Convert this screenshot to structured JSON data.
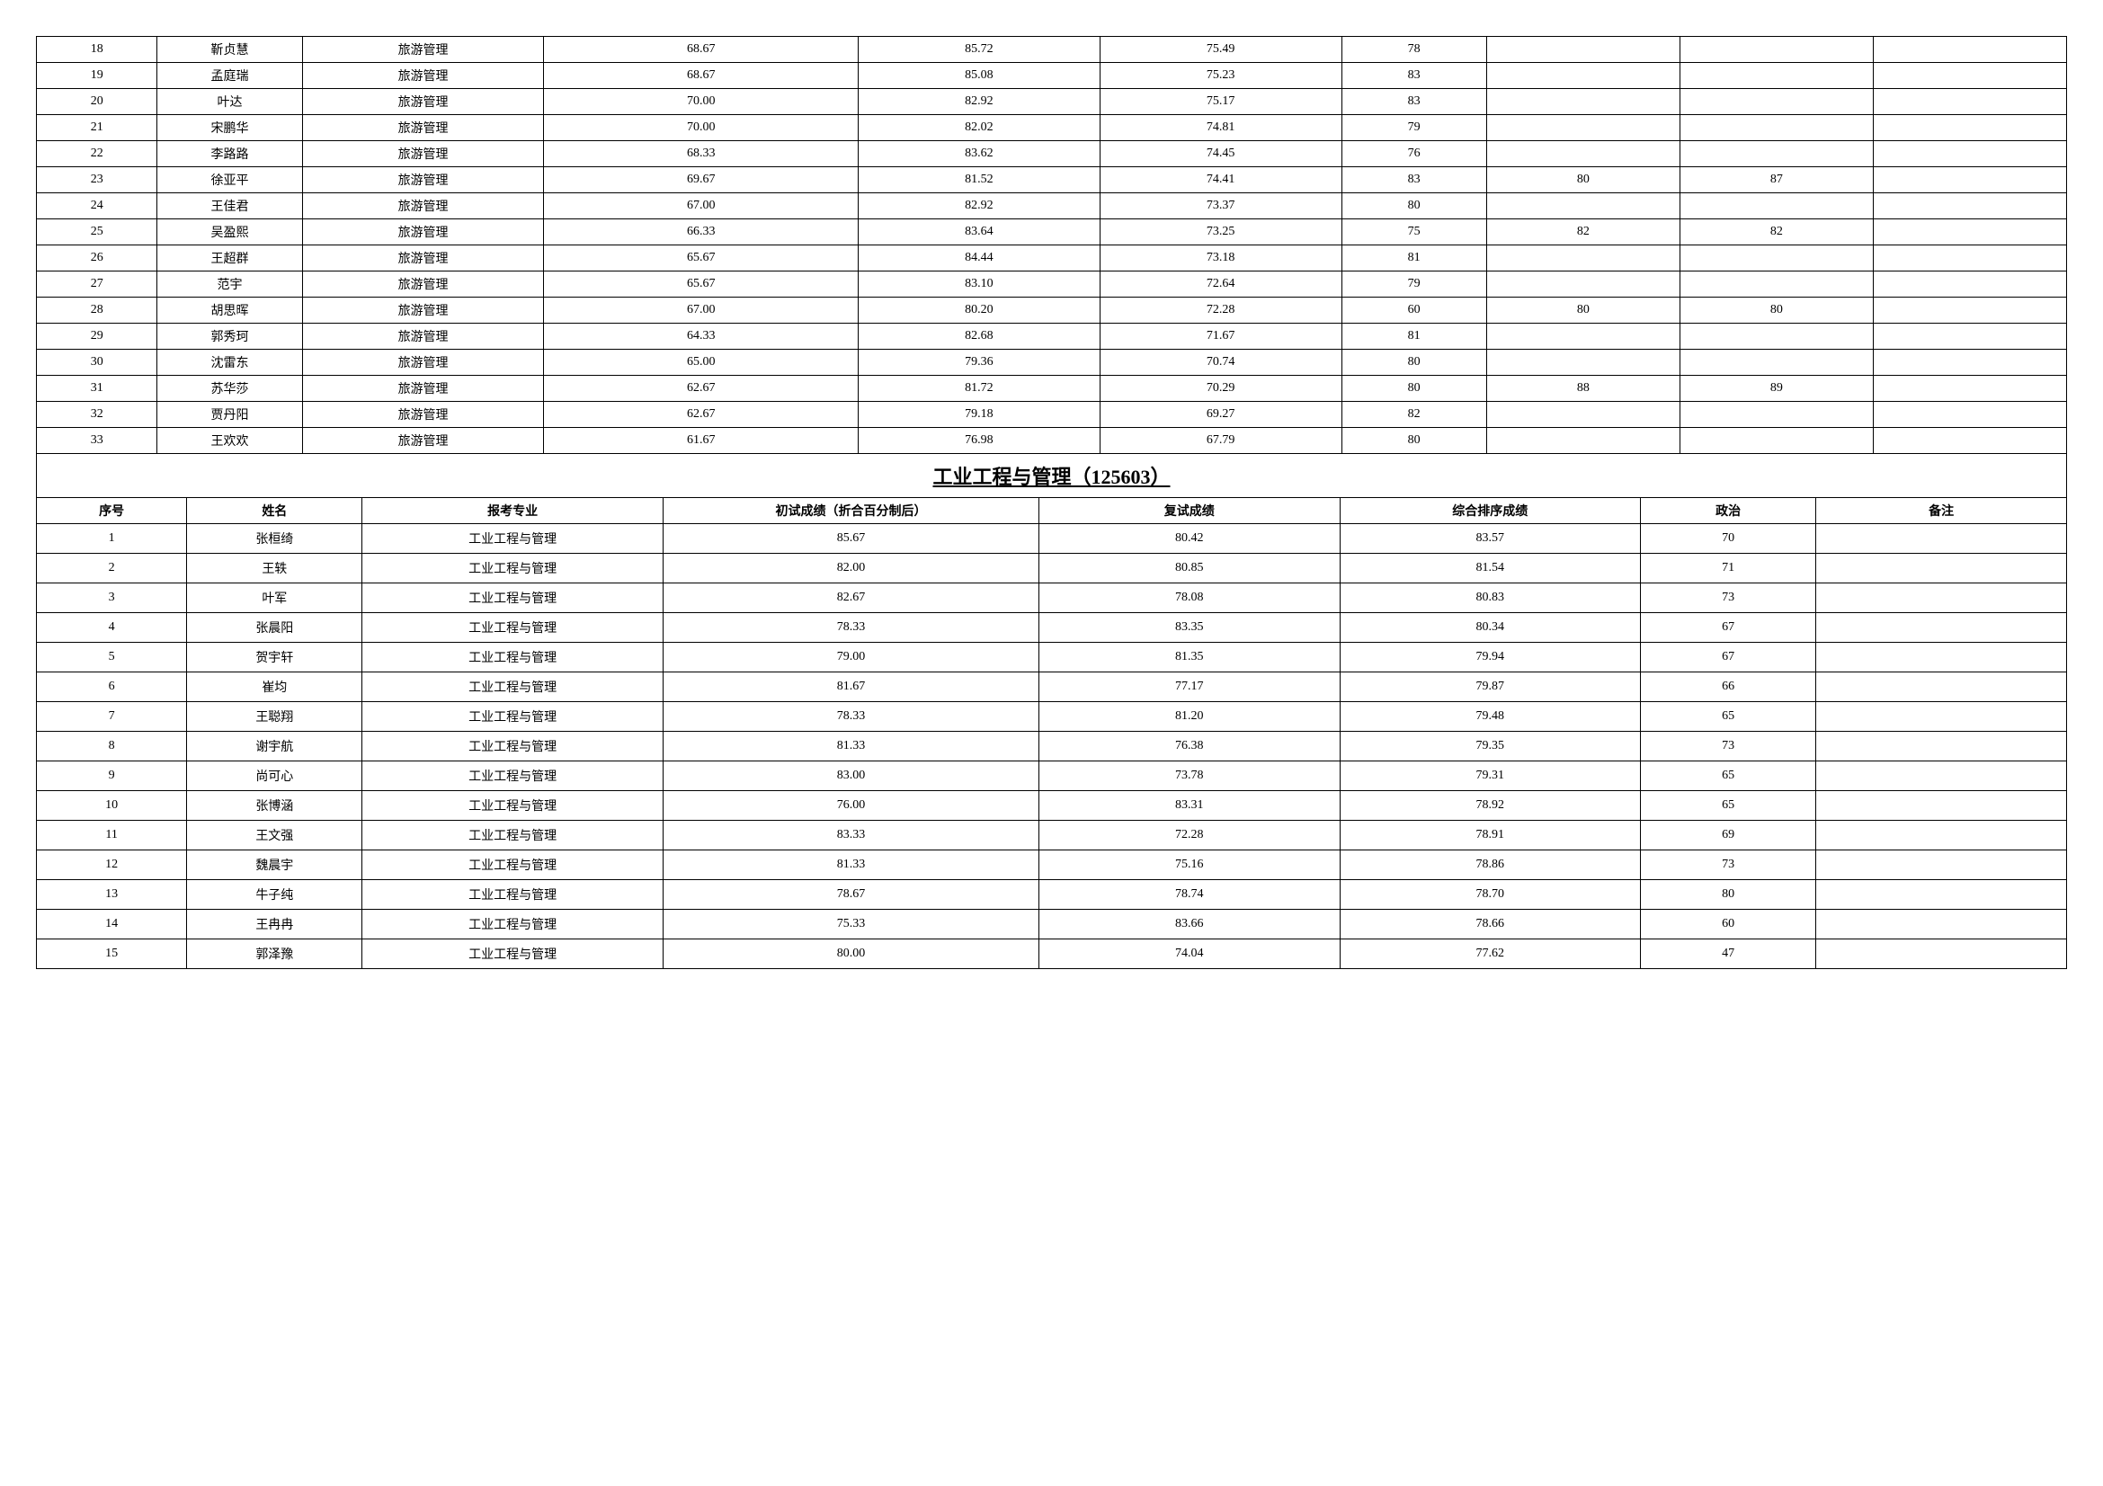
{
  "table1": {
    "rows": [
      {
        "seq": "18",
        "name": "靳贞慧",
        "major": "旅游管理",
        "c1": "68.67",
        "c2": "85.72",
        "c3": "75.49",
        "c4": "78",
        "c5": "",
        "c6": "",
        "note": ""
      },
      {
        "seq": "19",
        "name": "孟庭瑞",
        "major": "旅游管理",
        "c1": "68.67",
        "c2": "85.08",
        "c3": "75.23",
        "c4": "83",
        "c5": "",
        "c6": "",
        "note": ""
      },
      {
        "seq": "20",
        "name": "叶达",
        "major": "旅游管理",
        "c1": "70.00",
        "c2": "82.92",
        "c3": "75.17",
        "c4": "83",
        "c5": "",
        "c6": "",
        "note": ""
      },
      {
        "seq": "21",
        "name": "宋鹏华",
        "major": "旅游管理",
        "c1": "70.00",
        "c2": "82.02",
        "c3": "74.81",
        "c4": "79",
        "c5": "",
        "c6": "",
        "note": ""
      },
      {
        "seq": "22",
        "name": "李路路",
        "major": "旅游管理",
        "c1": "68.33",
        "c2": "83.62",
        "c3": "74.45",
        "c4": "76",
        "c5": "",
        "c6": "",
        "note": ""
      },
      {
        "seq": "23",
        "name": "徐亚平",
        "major": "旅游管理",
        "c1": "69.67",
        "c2": "81.52",
        "c3": "74.41",
        "c4": "83",
        "c5": "80",
        "c6": "87",
        "note": ""
      },
      {
        "seq": "24",
        "name": "王佳君",
        "major": "旅游管理",
        "c1": "67.00",
        "c2": "82.92",
        "c3": "73.37",
        "c4": "80",
        "c5": "",
        "c6": "",
        "note": ""
      },
      {
        "seq": "25",
        "name": "吴盈熙",
        "major": "旅游管理",
        "c1": "66.33",
        "c2": "83.64",
        "c3": "73.25",
        "c4": "75",
        "c5": "82",
        "c6": "82",
        "note": ""
      },
      {
        "seq": "26",
        "name": "王超群",
        "major": "旅游管理",
        "c1": "65.67",
        "c2": "84.44",
        "c3": "73.18",
        "c4": "81",
        "c5": "",
        "c6": "",
        "note": ""
      },
      {
        "seq": "27",
        "name": "范宇",
        "major": "旅游管理",
        "c1": "65.67",
        "c2": "83.10",
        "c3": "72.64",
        "c4": "79",
        "c5": "",
        "c6": "",
        "note": ""
      },
      {
        "seq": "28",
        "name": "胡思晖",
        "major": "旅游管理",
        "c1": "67.00",
        "c2": "80.20",
        "c3": "72.28",
        "c4": "60",
        "c5": "80",
        "c6": "80",
        "note": ""
      },
      {
        "seq": "29",
        "name": "郭秀珂",
        "major": "旅游管理",
        "c1": "64.33",
        "c2": "82.68",
        "c3": "71.67",
        "c4": "81",
        "c5": "",
        "c6": "",
        "note": ""
      },
      {
        "seq": "30",
        "name": "沈雷东",
        "major": "旅游管理",
        "c1": "65.00",
        "c2": "79.36",
        "c3": "70.74",
        "c4": "80",
        "c5": "",
        "c6": "",
        "note": ""
      },
      {
        "seq": "31",
        "name": "苏华莎",
        "major": "旅游管理",
        "c1": "62.67",
        "c2": "81.72",
        "c3": "70.29",
        "c4": "80",
        "c5": "88",
        "c6": "89",
        "note": ""
      },
      {
        "seq": "32",
        "name": "贾丹阳",
        "major": "旅游管理",
        "c1": "62.67",
        "c2": "79.18",
        "c3": "69.27",
        "c4": "82",
        "c5": "",
        "c6": "",
        "note": ""
      },
      {
        "seq": "33",
        "name": "王欢欢",
        "major": "旅游管理",
        "c1": "61.67",
        "c2": "76.98",
        "c3": "67.79",
        "c4": "80",
        "c5": "",
        "c6": "",
        "note": ""
      }
    ]
  },
  "section2": {
    "title": "工业工程与管理（125603）",
    "headers": {
      "seq": "序号",
      "name": "姓名",
      "major": "报考专业",
      "c1": "初试成绩（折合百分制后）",
      "c2": "复试成绩",
      "c3": "综合排序成绩",
      "c4": "政治",
      "note": "备注"
    },
    "rows": [
      {
        "seq": "1",
        "name": "张桓绮",
        "major": "工业工程与管理",
        "c1": "85.67",
        "c2": "80.42",
        "c3": "83.57",
        "c4": "70",
        "note": ""
      },
      {
        "seq": "2",
        "name": "王轶",
        "major": "工业工程与管理",
        "c1": "82.00",
        "c2": "80.85",
        "c3": "81.54",
        "c4": "71",
        "note": ""
      },
      {
        "seq": "3",
        "name": "叶军",
        "major": "工业工程与管理",
        "c1": "82.67",
        "c2": "78.08",
        "c3": "80.83",
        "c4": "73",
        "note": ""
      },
      {
        "seq": "4",
        "name": "张晨阳",
        "major": "工业工程与管理",
        "c1": "78.33",
        "c2": "83.35",
        "c3": "80.34",
        "c4": "67",
        "note": ""
      },
      {
        "seq": "5",
        "name": "贺宇轩",
        "major": "工业工程与管理",
        "c1": "79.00",
        "c2": "81.35",
        "c3": "79.94",
        "c4": "67",
        "note": ""
      },
      {
        "seq": "6",
        "name": "崔均",
        "major": "工业工程与管理",
        "c1": "81.67",
        "c2": "77.17",
        "c3": "79.87",
        "c4": "66",
        "note": ""
      },
      {
        "seq": "7",
        "name": "王聪翔",
        "major": "工业工程与管理",
        "c1": "78.33",
        "c2": "81.20",
        "c3": "79.48",
        "c4": "65",
        "note": ""
      },
      {
        "seq": "8",
        "name": "谢宇航",
        "major": "工业工程与管理",
        "c1": "81.33",
        "c2": "76.38",
        "c3": "79.35",
        "c4": "73",
        "note": ""
      },
      {
        "seq": "9",
        "name": "尚可心",
        "major": "工业工程与管理",
        "c1": "83.00",
        "c2": "73.78",
        "c3": "79.31",
        "c4": "65",
        "note": ""
      },
      {
        "seq": "10",
        "name": "张博涵",
        "major": "工业工程与管理",
        "c1": "76.00",
        "c2": "83.31",
        "c3": "78.92",
        "c4": "65",
        "note": ""
      },
      {
        "seq": "11",
        "name": "王文强",
        "major": "工业工程与管理",
        "c1": "83.33",
        "c2": "72.28",
        "c3": "78.91",
        "c4": "69",
        "note": ""
      },
      {
        "seq": "12",
        "name": "魏晨宇",
        "major": "工业工程与管理",
        "c1": "81.33",
        "c2": "75.16",
        "c3": "78.86",
        "c4": "73",
        "note": ""
      },
      {
        "seq": "13",
        "name": "牛子纯",
        "major": "工业工程与管理",
        "c1": "78.67",
        "c2": "78.74",
        "c3": "78.70",
        "c4": "80",
        "note": ""
      },
      {
        "seq": "14",
        "name": "王冉冉",
        "major": "工业工程与管理",
        "c1": "75.33",
        "c2": "83.66",
        "c3": "78.66",
        "c4": "60",
        "note": ""
      },
      {
        "seq": "15",
        "name": "郭泽豫",
        "major": "工业工程与管理",
        "c1": "80.00",
        "c2": "74.04",
        "c3": "77.62",
        "c4": "47",
        "note": ""
      }
    ]
  }
}
